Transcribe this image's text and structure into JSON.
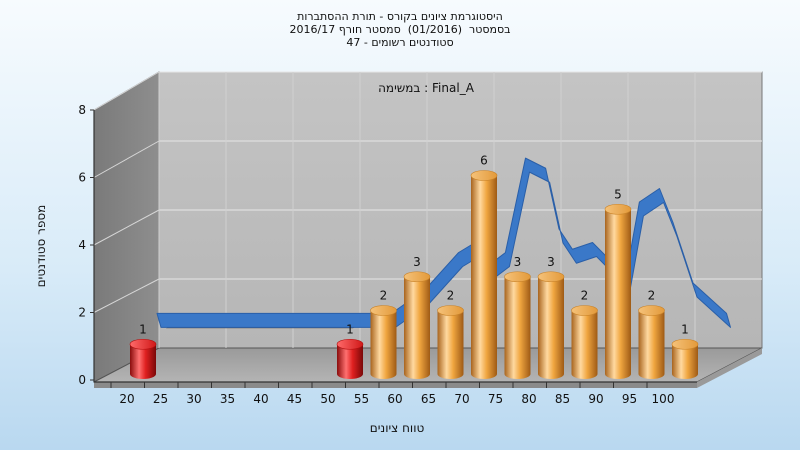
{
  "chart_data": {
    "type": "bar",
    "title": "היסטוגרמת ציונים בקורס - תורת ההסתברות",
    "subtitle": "בסמסטר  (01/2016)  סמסטר חורף 2016/17",
    "subtitle2": "סטודנטים רשומים - 47",
    "annotation": "במשימה : Final_A",
    "xlabel": "טווח ציונים",
    "ylabel": "מספר סטודנטים",
    "ylim": [
      0,
      8
    ],
    "yticks": [
      "0",
      "2",
      "4",
      "6",
      "8"
    ],
    "xticks": [
      "20",
      "25",
      "30",
      "35",
      "40",
      "45",
      "50",
      "55",
      "60",
      "65",
      "70",
      "75",
      "80",
      "85",
      "90",
      "95",
      "100"
    ],
    "grid": true,
    "bars": [
      {
        "x": 20,
        "value": 1,
        "label": "1",
        "color": "#e02020"
      },
      {
        "x": 50,
        "value": 1,
        "label": "1",
        "color": "#e02020"
      },
      {
        "x": 55,
        "value": 2,
        "label": "2",
        "color": "#f0a640"
      },
      {
        "x": 60,
        "value": 3,
        "label": "3",
        "color": "#f0a640"
      },
      {
        "x": 65,
        "value": 2,
        "label": "2",
        "color": "#f0a640"
      },
      {
        "x": 70,
        "value": 6,
        "label": "6",
        "color": "#f0a640"
      },
      {
        "x": 75,
        "value": 3,
        "label": "3",
        "color": "#f0a640"
      },
      {
        "x": 80,
        "value": 3,
        "label": "3",
        "color": "#f0a640"
      },
      {
        "x": 85,
        "value": 2,
        "label": "2",
        "color": "#f0a640"
      },
      {
        "x": 90,
        "value": 5,
        "label": "5",
        "color": "#f0a640"
      },
      {
        "x": 95,
        "value": 2,
        "label": "2",
        "color": "#f0a640"
      },
      {
        "x": 100,
        "value": 1,
        "label": "1",
        "color": "#f0a640"
      }
    ],
    "trend_line": {
      "color": "#3a78c8",
      "x": [
        20,
        25,
        30,
        35,
        40,
        45,
        50,
        55,
        60,
        65,
        67.5,
        70,
        72,
        75,
        78,
        80,
        82,
        85,
        88,
        90,
        92,
        95,
        97,
        100,
        105
      ],
      "y": [
        1.5,
        1.5,
        1.5,
        1.5,
        1.5,
        1.5,
        1.5,
        1.5,
        2.2,
        3.3,
        3.6,
        3.0,
        3.3,
        6.1,
        5.8,
        4.0,
        3.4,
        3.6,
        3.0,
        2.6,
        4.8,
        5.2,
        4.2,
        2.4,
        1.5
      ]
    }
  }
}
